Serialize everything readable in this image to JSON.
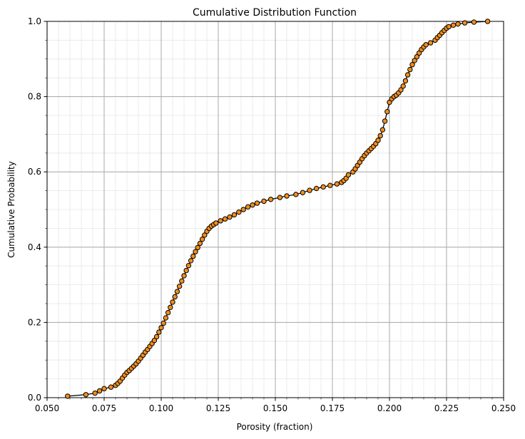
{
  "chart_data": {
    "type": "line",
    "title": "Cumulative Distribution Function",
    "xlabel": "Porosity (fraction)",
    "ylabel": "Cumulative Probability",
    "xlim": [
      0.05,
      0.25
    ],
    "ylim": [
      0.0,
      1.0
    ],
    "x_ticks": [
      "0.050",
      "0.075",
      "0.100",
      "0.125",
      "0.150",
      "0.175",
      "0.200",
      "0.225",
      "0.250"
    ],
    "y_ticks": [
      "0.0",
      "0.2",
      "0.4",
      "0.6",
      "0.8",
      "1.0"
    ],
    "grid": true,
    "minor_grid": true,
    "line_color": "#000000",
    "marker_color": "#f28e1c",
    "marker_edge_color": "#000000",
    "series": [
      {
        "x": [
          0.059,
          0.067,
          0.071,
          0.073,
          0.075,
          0.078,
          0.08,
          0.081,
          0.082,
          0.083,
          0.084,
          0.085,
          0.086,
          0.087,
          0.088,
          0.089,
          0.09,
          0.091,
          0.092,
          0.093,
          0.094,
          0.095,
          0.096,
          0.097,
          0.098,
          0.099,
          0.1,
          0.101,
          0.102,
          0.103,
          0.104,
          0.105,
          0.106,
          0.107,
          0.108,
          0.109,
          0.11,
          0.111,
          0.112,
          0.113,
          0.114,
          0.115,
          0.116,
          0.117,
          0.118,
          0.119,
          0.12,
          0.121,
          0.122,
          0.123,
          0.124,
          0.126,
          0.128,
          0.13,
          0.132,
          0.134,
          0.136,
          0.138,
          0.14,
          0.142,
          0.145,
          0.148,
          0.152,
          0.155,
          0.159,
          0.162,
          0.165,
          0.168,
          0.171,
          0.174,
          0.177,
          0.179,
          0.18,
          0.181,
          0.182,
          0.184,
          0.185,
          0.186,
          0.187,
          0.188,
          0.189,
          0.19,
          0.191,
          0.192,
          0.193,
          0.194,
          0.195,
          0.196,
          0.197,
          0.198,
          0.199,
          0.2,
          0.201,
          0.202,
          0.203,
          0.204,
          0.205,
          0.206,
          0.207,
          0.208,
          0.209,
          0.21,
          0.211,
          0.212,
          0.213,
          0.214,
          0.215,
          0.216,
          0.218,
          0.22,
          0.221,
          0.222,
          0.223,
          0.224,
          0.225,
          0.226,
          0.228,
          0.23,
          0.233,
          0.237,
          0.243
        ],
        "y": [
          0.004,
          0.008,
          0.012,
          0.018,
          0.024,
          0.028,
          0.033,
          0.038,
          0.044,
          0.052,
          0.06,
          0.067,
          0.072,
          0.078,
          0.084,
          0.09,
          0.097,
          0.105,
          0.113,
          0.121,
          0.128,
          0.136,
          0.144,
          0.152,
          0.162,
          0.174,
          0.186,
          0.198,
          0.212,
          0.226,
          0.24,
          0.254,
          0.268,
          0.282,
          0.296,
          0.31,
          0.324,
          0.338,
          0.351,
          0.364,
          0.376,
          0.388,
          0.399,
          0.41,
          0.421,
          0.432,
          0.442,
          0.45,
          0.456,
          0.46,
          0.464,
          0.47,
          0.475,
          0.48,
          0.486,
          0.493,
          0.5,
          0.507,
          0.512,
          0.517,
          0.522,
          0.527,
          0.532,
          0.536,
          0.54,
          0.545,
          0.551,
          0.556,
          0.56,
          0.564,
          0.568,
          0.572,
          0.577,
          0.583,
          0.592,
          0.6,
          0.608,
          0.617,
          0.626,
          0.635,
          0.643,
          0.65,
          0.656,
          0.662,
          0.668,
          0.675,
          0.684,
          0.696,
          0.712,
          0.735,
          0.76,
          0.785,
          0.794,
          0.8,
          0.804,
          0.81,
          0.818,
          0.828,
          0.842,
          0.858,
          0.872,
          0.885,
          0.896,
          0.906,
          0.916,
          0.925,
          0.932,
          0.938,
          0.943,
          0.95,
          0.957,
          0.963,
          0.97,
          0.976,
          0.982,
          0.986,
          0.99,
          0.993,
          0.996,
          0.998,
          1.0
        ]
      }
    ]
  }
}
